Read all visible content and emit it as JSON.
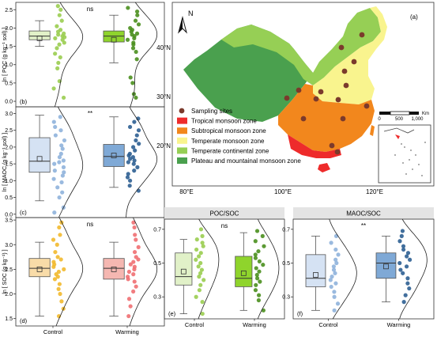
{
  "map": {
    "panel_label": "(a)",
    "north": "N",
    "lat_labels": [
      "40°N",
      "30°N",
      "20°N"
    ],
    "lon_labels": [
      "80°E",
      "100°E",
      "120°E"
    ],
    "scale": {
      "ticks": [
        "0",
        "500",
        "1,000"
      ],
      "unit": "Km"
    },
    "legend": [
      {
        "label": "Sampling sites",
        "color": "#7b3a2c",
        "kind": "dot"
      },
      {
        "label": "Tropical monsoon zone",
        "color": "#ee2b2b",
        "kind": "box"
      },
      {
        "label": "Subtropical monsoon zone",
        "color": "#f2871d",
        "kind": "box"
      },
      {
        "label": "Temperate monsoon zone",
        "color": "#f9f48e",
        "kind": "box"
      },
      {
        "label": "Temperate continental zone",
        "color": "#96cf55",
        "kind": "box"
      },
      {
        "label": "Plateau and mountainal monsoon zone",
        "color": "#4aa04e",
        "kind": "box"
      }
    ]
  },
  "chart_data": [
    {
      "id": "b",
      "type": "box",
      "panel_label": "(b)",
      "ylabel": "ln [ POC (g kg⁻¹ soil) ]",
      "ylim": [
        -0.15,
        2.7
      ],
      "yticks": [
        0.0,
        0.5,
        1.0,
        1.5,
        2.0,
        2.5
      ],
      "significance": "ns",
      "categories": [
        "Control",
        "Warming"
      ],
      "show_xticks": false,
      "series": [
        {
          "name": "Control",
          "color": "#9acd50",
          "fill": "#e1f1c8",
          "box": {
            "whisker_low": 1.5,
            "q1": 1.68,
            "median": 1.78,
            "q3": 1.92,
            "whisker_high": 2.2,
            "mean": 1.72
          },
          "points": [
            0.1,
            0.35,
            0.55,
            0.9,
            1.05,
            1.2,
            1.3,
            1.45,
            1.55,
            1.6,
            1.68,
            1.72,
            1.75,
            1.78,
            1.82,
            1.85,
            1.9,
            1.95,
            2.05,
            2.2,
            2.35,
            2.5,
            2.6
          ]
        },
        {
          "name": "Warming",
          "color": "#4a8f1e",
          "fill": "#8fd42c",
          "box": {
            "whisker_low": 1.05,
            "q1": 1.62,
            "median": 1.78,
            "q3": 1.92,
            "whisker_high": 2.35,
            "mean": 1.68
          },
          "points": [
            0.1,
            0.2,
            0.5,
            0.65,
            1.15,
            1.35,
            1.45,
            1.55,
            1.6,
            1.68,
            1.72,
            1.78,
            1.82,
            1.85,
            1.9,
            1.95,
            2.0,
            2.1,
            2.2,
            2.35,
            2.45,
            2.55
          ]
        }
      ]
    },
    {
      "id": "c",
      "type": "box",
      "panel_label": "(c)",
      "ylabel": "ln [ MAOC (g kg⁻¹ soil) ]",
      "ylim": [
        -0.1,
        3.2
      ],
      "yticks": [
        0.0,
        0.5,
        1.0,
        1.5,
        2.0,
        2.5,
        3.0
      ],
      "significance": "**",
      "categories": [
        "Control",
        "Warming"
      ],
      "show_xticks": false,
      "series": [
        {
          "name": "Control",
          "color": "#8fb2dc",
          "fill": "#d5e2f3",
          "box": {
            "whisker_low": 0.4,
            "q1": 1.25,
            "median": 1.58,
            "q3": 2.28,
            "whisker_high": 2.95,
            "mean": 1.65
          },
          "points": [
            0.05,
            0.2,
            0.5,
            0.65,
            0.8,
            0.95,
            1.05,
            1.15,
            1.25,
            1.3,
            1.4,
            1.5,
            1.55,
            1.6,
            1.7,
            1.8,
            1.95,
            2.05,
            2.2,
            2.35,
            2.5,
            2.6,
            2.75,
            2.9
          ]
        },
        {
          "name": "Warming",
          "color": "#2e5f92",
          "fill": "#7fa9d6",
          "box": {
            "whisker_low": 0.8,
            "q1": 1.42,
            "median": 1.72,
            "q3": 2.08,
            "whisker_high": 2.9,
            "mean": 1.75
          },
          "points": [
            0.7,
            0.85,
            1.0,
            1.1,
            1.2,
            1.3,
            1.4,
            1.5,
            1.55,
            1.6,
            1.65,
            1.7,
            1.75,
            1.8,
            1.9,
            2.0,
            2.1,
            2.2,
            2.35,
            2.5,
            2.6,
            2.75,
            2.85
          ]
        }
      ]
    },
    {
      "id": "d",
      "type": "box",
      "panel_label": "(d)",
      "ylabel": "ln [ SOC (g kg⁻¹) ]",
      "ylim": [
        1.35,
        3.55
      ],
      "yticks": [
        1.5,
        2.0,
        2.5,
        3.0,
        3.5
      ],
      "significance": "ns",
      "categories": [
        "Control",
        "Warming"
      ],
      "show_xticks": true,
      "series": [
        {
          "name": "Control",
          "color": "#f2b92d",
          "fill": "#f9dca8",
          "box": {
            "whisker_low": 1.55,
            "q1": 2.35,
            "median": 2.52,
            "q3": 2.72,
            "whisker_high": 3.05,
            "mean": 2.5
          },
          "points": [
            1.55,
            1.7,
            1.85,
            2.0,
            2.1,
            2.2,
            2.3,
            2.35,
            2.4,
            2.45,
            2.5,
            2.55,
            2.6,
            2.65,
            2.7,
            2.75,
            2.85,
            3.0,
            3.1,
            3.2,
            3.35,
            3.45
          ]
        },
        {
          "name": "Warming",
          "color": "#ef6f72",
          "fill": "#f5b7b1",
          "box": {
            "whisker_low": 1.55,
            "q1": 2.3,
            "median": 2.52,
            "q3": 2.72,
            "whisker_high": 3.05,
            "mean": 2.5
          },
          "points": [
            1.55,
            1.75,
            1.9,
            2.05,
            2.15,
            2.25,
            2.3,
            2.35,
            2.4,
            2.45,
            2.5,
            2.55,
            2.6,
            2.65,
            2.7,
            2.75,
            2.85,
            2.95,
            3.1,
            3.2,
            3.35,
            3.45
          ]
        }
      ]
    },
    {
      "id": "e",
      "type": "box",
      "panel_label": "(e)",
      "title": "POC/SOC",
      "ylabel": "",
      "ylim": [
        0.17,
        0.76
      ],
      "yticks": [
        0.3,
        0.5,
        0.7
      ],
      "significance": "ns",
      "categories": [
        "Control",
        "Warming"
      ],
      "show_xticks": true,
      "series": [
        {
          "name": "Control",
          "color": "#9acd50",
          "fill": "#e1f1c8",
          "box": {
            "whisker_low": 0.2,
            "q1": 0.37,
            "median": 0.42,
            "q3": 0.56,
            "whisker_high": 0.64,
            "mean": 0.45
          },
          "points": [
            0.2,
            0.27,
            0.3,
            0.34,
            0.37,
            0.4,
            0.42,
            0.44,
            0.46,
            0.48,
            0.5,
            0.52,
            0.54,
            0.56,
            0.58,
            0.6,
            0.62,
            0.64,
            0.66,
            0.7
          ]
        },
        {
          "name": "Warming",
          "color": "#4a8f1e",
          "fill": "#8fd42c",
          "box": {
            "whisker_low": 0.22,
            "q1": 0.36,
            "median": 0.41,
            "q3": 0.54,
            "whisker_high": 0.68,
            "mean": 0.44
          },
          "points": [
            0.22,
            0.28,
            0.31,
            0.34,
            0.37,
            0.39,
            0.41,
            0.43,
            0.45,
            0.47,
            0.49,
            0.51,
            0.53,
            0.55,
            0.57,
            0.6,
            0.63,
            0.66,
            0.69
          ]
        }
      ]
    },
    {
      "id": "f",
      "type": "box",
      "panel_label": "(f)",
      "title": "MAOC/SOC",
      "ylabel": "",
      "ylim": [
        0.17,
        0.76
      ],
      "yticks": [
        0.3,
        0.5,
        0.7
      ],
      "significance": "**",
      "categories": [
        "Control",
        "Warming"
      ],
      "show_xticks": true,
      "series": [
        {
          "name": "Control",
          "color": "#8fb2dc",
          "fill": "#d5e2f3",
          "box": {
            "whisker_low": 0.22,
            "q1": 0.36,
            "median": 0.41,
            "q3": 0.55,
            "whisker_high": 0.66,
            "mean": 0.43
          },
          "points": [
            0.22,
            0.26,
            0.3,
            0.33,
            0.36,
            0.38,
            0.4,
            0.42,
            0.44,
            0.46,
            0.48,
            0.5,
            0.52,
            0.55,
            0.58,
            0.62,
            0.66
          ]
        },
        {
          "name": "Warming",
          "color": "#2e5f92",
          "fill": "#7fa9d6",
          "box": {
            "whisker_low": 0.27,
            "q1": 0.41,
            "median": 0.5,
            "q3": 0.56,
            "whisker_high": 0.66,
            "mean": 0.48
          },
          "points": [
            0.27,
            0.31,
            0.35,
            0.38,
            0.41,
            0.44,
            0.46,
            0.48,
            0.5,
            0.52,
            0.54,
            0.56,
            0.58,
            0.6,
            0.63,
            0.66,
            0.69
          ]
        }
      ]
    }
  ]
}
